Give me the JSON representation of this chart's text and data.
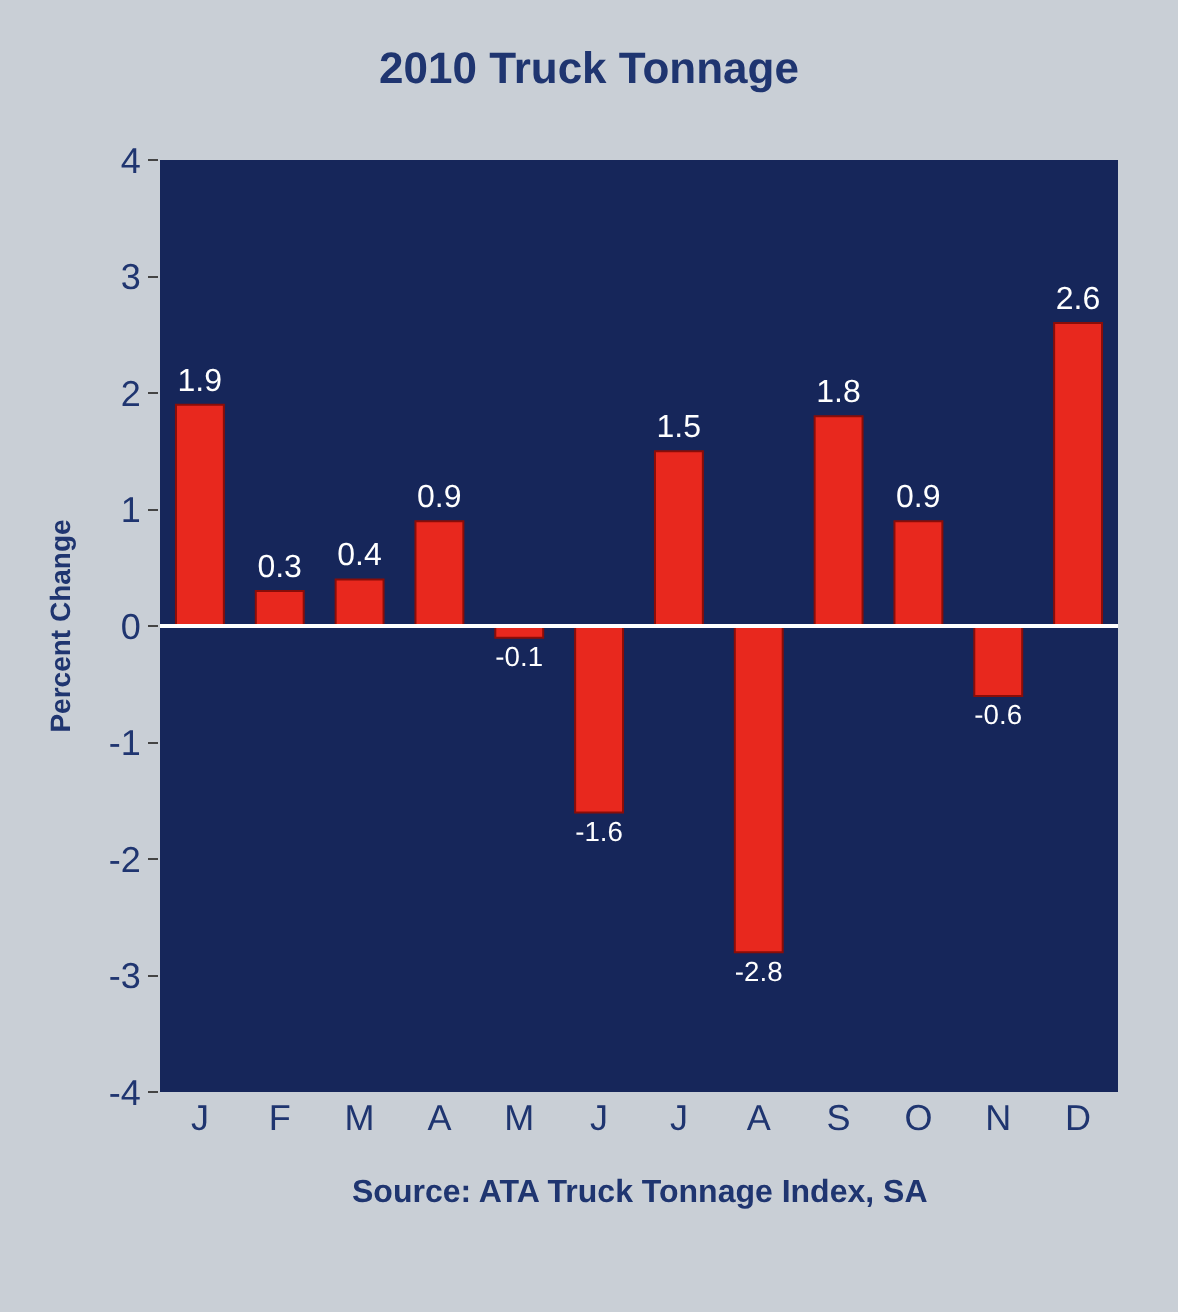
{
  "chart_data": {
    "type": "bar",
    "title": "2010 Truck Tonnage",
    "ylabel": "Percent Change",
    "categories": [
      "J",
      "F",
      "M",
      "A",
      "M",
      "J",
      "J",
      "A",
      "S",
      "O",
      "N",
      "D"
    ],
    "values": [
      1.9,
      0.3,
      0.4,
      0.9,
      -0.1,
      -1.6,
      1.5,
      -2.8,
      1.8,
      0.9,
      -0.6,
      2.6
    ],
    "color": "#e8281e",
    "data_labels": true,
    "ylim": [
      -4,
      4
    ],
    "yticks": [
      -4,
      -3,
      -2,
      -1,
      0,
      1,
      2,
      3,
      4
    ],
    "grid": false,
    "ref_lines": [
      {
        "axis": "y",
        "value": 0,
        "color": "#ffffff"
      }
    ],
    "annotations": [
      "Source: ATA Truck Tonnage Index, SA"
    ]
  }
}
